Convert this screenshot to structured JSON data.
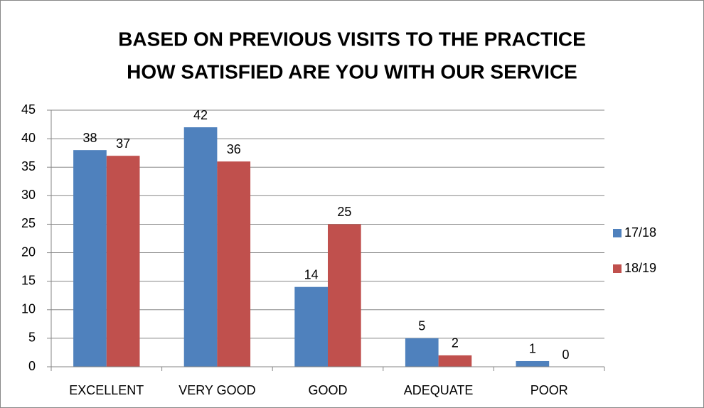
{
  "chart_data": {
    "type": "bar",
    "title": [
      "BASED ON PREVIOUS VISITS TO THE PRACTICE",
      "HOW SATISFIED ARE YOU WITH OUR SERVICE"
    ],
    "categories": [
      "EXCELLENT",
      "VERY GOOD",
      "GOOD",
      "ADEQUATE",
      "POOR"
    ],
    "series": [
      {
        "name": "17/18",
        "color": "#4f81bd",
        "values": [
          38,
          42,
          14,
          5,
          1
        ]
      },
      {
        "name": "18/19",
        "color": "#c0504d",
        "values": [
          37,
          36,
          25,
          2,
          0
        ]
      }
    ],
    "ylim": [
      0,
      45
    ],
    "yticks": [
      0,
      5,
      10,
      15,
      20,
      25,
      30,
      35,
      40,
      45
    ],
    "grid": true,
    "legend": "right"
  }
}
